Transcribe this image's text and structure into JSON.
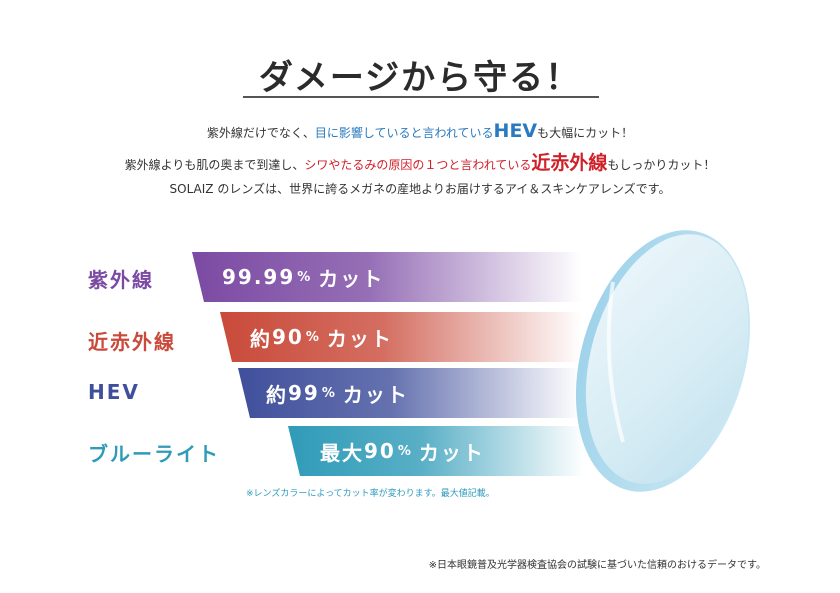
{
  "title": "ダメージから守る！",
  "intro": {
    "line1": {
      "a": "紫外線だけでなく、",
      "b": "目に影響していると言われている",
      "c": "HEV",
      "d": "も大幅にカット！"
    },
    "line2": {
      "a": "紫外線よりも肌の奥まで到達し、",
      "b": "シワやたるみの原因の１つと言われている",
      "c": "近赤外線",
      "d": "もしっかりカット！"
    },
    "line3": "SOLAIZ のレンズは、世界に誇るメガネの産地よりお届けするアイ＆スキンケアレンズです。"
  },
  "rows": [
    {
      "label": "紫外線",
      "prefix": "",
      "value": "99.99",
      "unit": "%",
      "suffix": "カット",
      "color": "#7b4aa3"
    },
    {
      "label": "近赤外線",
      "prefix": "約",
      "value": "90",
      "unit": "%",
      "suffix": "カット",
      "color": "#c94a3a"
    },
    {
      "label": "HEV",
      "prefix": "約",
      "value": "99",
      "unit": "%",
      "suffix": "カット",
      "color": "#3f4f9b"
    },
    {
      "label": "ブルーライト",
      "prefix": "最大",
      "value": "90",
      "unit": "%",
      "suffix": "カット",
      "color": "#2f9bb8"
    }
  ],
  "note_lens": "※レンズカラーによってカット率が変わります。最大値記載。",
  "note_source": "※日本眼鏡普及光学器検査協会の試験に基づいた信頼のおけるデータです。"
}
